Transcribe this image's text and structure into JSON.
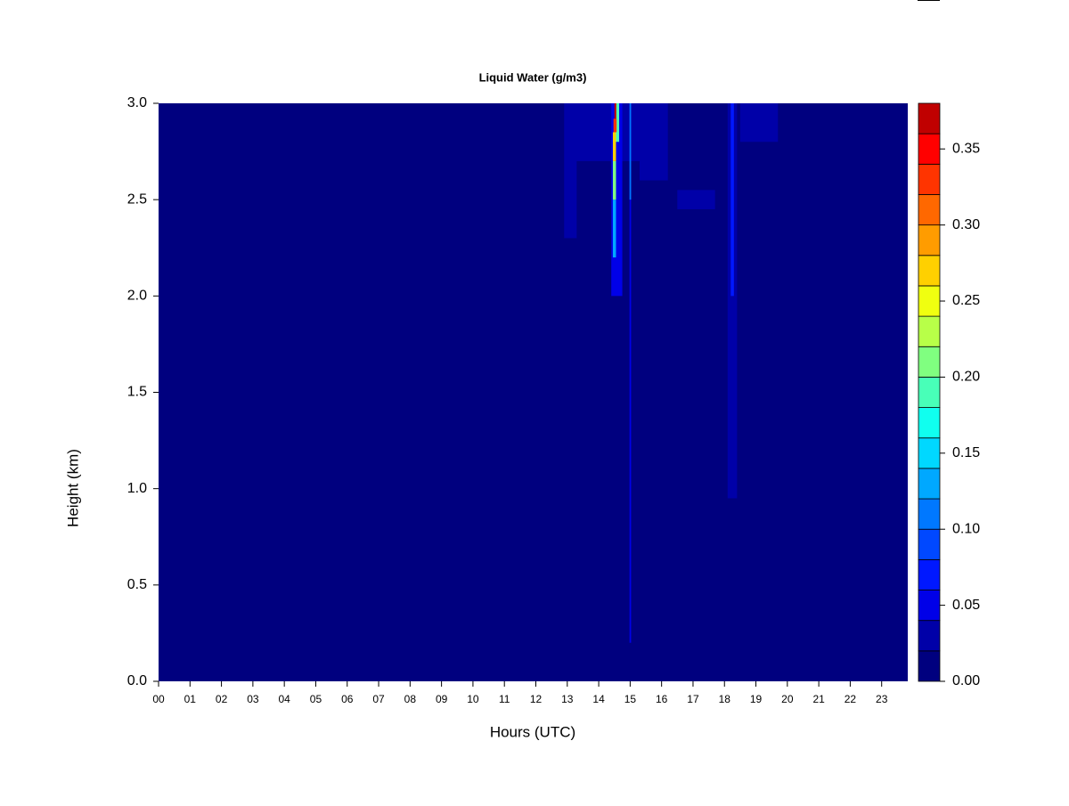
{
  "chart_data": {
    "type": "heatmap",
    "title": "Liquid Water (g/m3)",
    "x_label": "Hours (UTC)",
    "y_label": "Height (km)",
    "xlim": [
      0,
      23.83
    ],
    "ylim": [
      0,
      3.0
    ],
    "xticks": [
      {
        "value": 0,
        "label": "00"
      },
      {
        "value": 1,
        "label": "01"
      },
      {
        "value": 2,
        "label": "02"
      },
      {
        "value": 3,
        "label": "03"
      },
      {
        "value": 4,
        "label": "04"
      },
      {
        "value": 5,
        "label": "05"
      },
      {
        "value": 6,
        "label": "06"
      },
      {
        "value": 7,
        "label": "07"
      },
      {
        "value": 8,
        "label": "08"
      },
      {
        "value": 9,
        "label": "09"
      },
      {
        "value": 10,
        "label": "10"
      },
      {
        "value": 11,
        "label": "11"
      },
      {
        "value": 12,
        "label": "12"
      },
      {
        "value": 13,
        "label": "13"
      },
      {
        "value": 14,
        "label": "14"
      },
      {
        "value": 15,
        "label": "15"
      },
      {
        "value": 16,
        "label": "16"
      },
      {
        "value": 17,
        "label": "17"
      },
      {
        "value": 18,
        "label": "18"
      },
      {
        "value": 19,
        "label": "19"
      },
      {
        "value": 20,
        "label": "20"
      },
      {
        "value": 21,
        "label": "21"
      },
      {
        "value": 22,
        "label": "22"
      },
      {
        "value": 23,
        "label": "23"
      }
    ],
    "yticks": [
      {
        "value": 0,
        "label": "0.0"
      },
      {
        "value": 0.5,
        "label": "0.5"
      },
      {
        "value": 1,
        "label": "1.0"
      },
      {
        "value": 1.5,
        "label": "1.5"
      },
      {
        "value": 2,
        "label": "2.0"
      },
      {
        "value": 2.5,
        "label": "2.5"
      },
      {
        "value": 3,
        "label": "3.0"
      }
    ],
    "levels": [
      0,
      0.02,
      0.04,
      0.06,
      0.08,
      0.1,
      0.12,
      0.14,
      0.16,
      0.18,
      0.2,
      0.22,
      0.24,
      0.26,
      0.28,
      0.3,
      0.32,
      0.34,
      0.36,
      0.38
    ],
    "colors": [
      "#00007F",
      "#0000A8",
      "#0000E8",
      "#0018FF",
      "#0048FF",
      "#0078FF",
      "#00A8FF",
      "#00D8FF",
      "#10FFEF",
      "#48FFB8",
      "#80FF80",
      "#B8FF48",
      "#F0FF10",
      "#FFD000",
      "#FF9C00",
      "#FF6800",
      "#FF3400",
      "#FF0000",
      "#C00000"
    ],
    "colorbar_ticks": [
      {
        "value": 0,
        "label": "0.00"
      },
      {
        "value": 0.05,
        "label": "0.05"
      },
      {
        "value": 0.1,
        "label": "0.10"
      },
      {
        "value": 0.15,
        "label": "0.15"
      },
      {
        "value": 0.2,
        "label": "0.20"
      },
      {
        "value": 0.25,
        "label": "0.25"
      },
      {
        "value": 0.3,
        "label": "0.30"
      },
      {
        "value": 0.35,
        "label": "0.35"
      }
    ],
    "cells": {
      "x0": [
        12.9,
        13.0,
        15.3,
        18.5,
        16.5,
        18.1,
        14.98,
        18.2,
        14.4,
        14.98,
        14.55,
        14.45,
        14.45,
        14.45,
        14.47,
        14.5
      ],
      "x1": [
        13.3,
        15.8,
        16.2,
        19.7,
        17.7,
        18.4,
        15.03,
        18.3,
        14.75,
        15.03,
        14.65,
        14.55,
        14.55,
        14.55,
        14.57,
        14.56
      ],
      "y0": [
        2.3,
        2.7,
        2.6,
        2.8,
        2.45,
        0.95,
        0.2,
        2.0,
        2.0,
        2.5,
        2.8,
        2.2,
        2.5,
        2.7,
        2.85,
        2.92
      ],
      "y1": [
        3.0,
        3.0,
        3.0,
        3.0,
        2.55,
        3.0,
        3.0,
        3.0,
        3.0,
        3.0,
        3.0,
        2.5,
        2.7,
        2.85,
        2.92,
        3.0
      ],
      "values": [
        0.03,
        0.03,
        0.03,
        0.03,
        0.03,
        0.03,
        0.05,
        0.07,
        0.05,
        0.11,
        0.19,
        0.13,
        0.21,
        0.27,
        0.33,
        0.37
      ]
    }
  }
}
